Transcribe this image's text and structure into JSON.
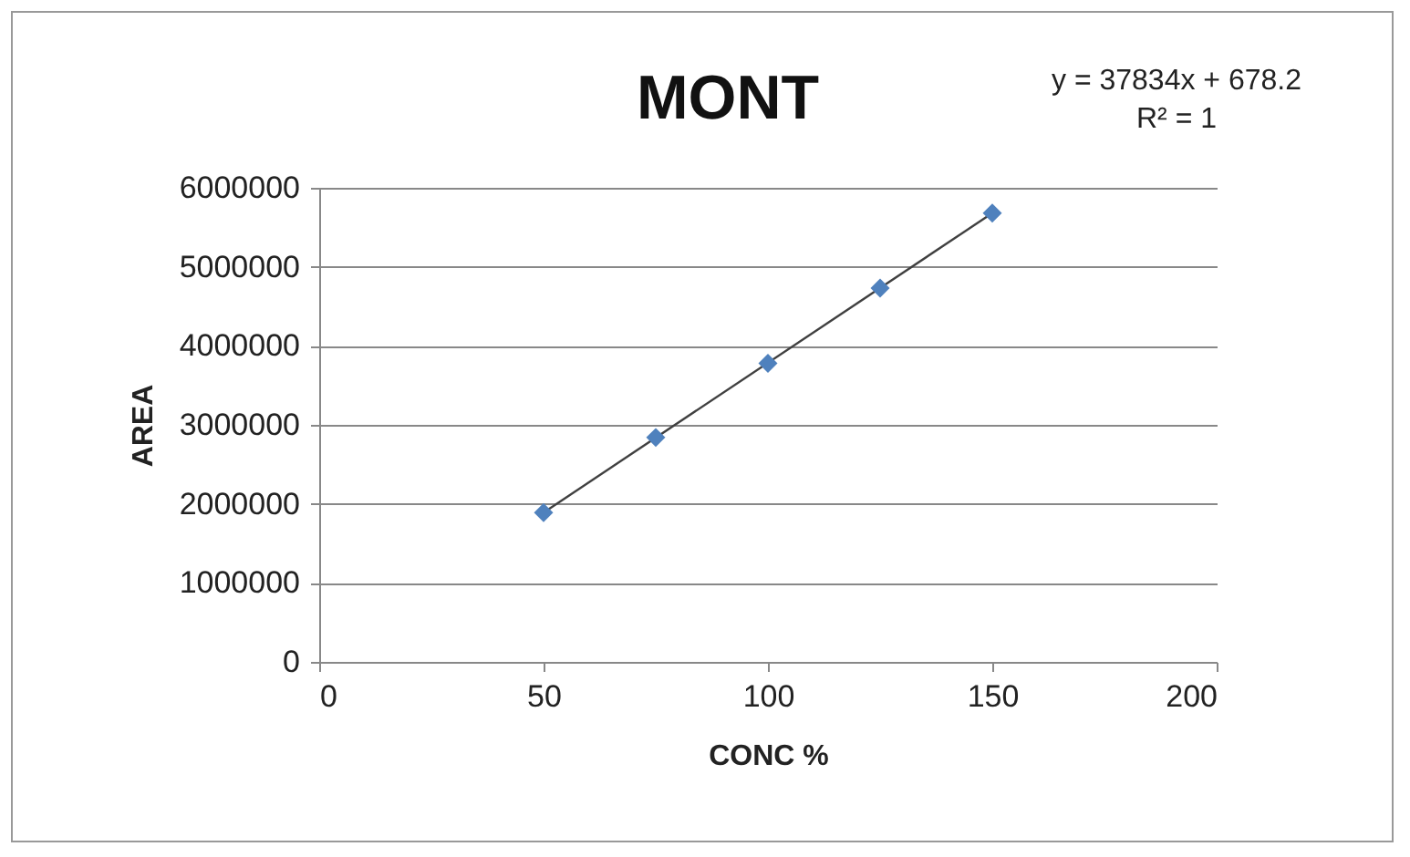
{
  "chart_data": {
    "type": "scatter",
    "title": "MONT",
    "xlabel": "CONC %",
    "ylabel": "AREA",
    "annotations": [
      "y = 37834x + 678.2",
      "R² = 1"
    ],
    "series": [
      {
        "color": "#4f81bd",
        "marker": "diamond",
        "x": [
          50,
          75,
          100,
          125,
          150
        ],
        "values": [
          1890000,
          2840000,
          3780000,
          4730000,
          5680000
        ]
      },
      {
        "type": "line",
        "color": "#404040",
        "marker": "none",
        "x": [
          50,
          150
        ],
        "values": [
          1890000,
          5680000
        ]
      }
    ],
    "xlim": [
      0,
      200
    ],
    "xticks": [
      0,
      50,
      100,
      150,
      200
    ],
    "ylim": [
      0,
      6000000
    ],
    "yticks": [
      0,
      1000000,
      2000000,
      3000000,
      4000000,
      5000000,
      6000000
    ],
    "grid": "y",
    "line_style": "solid"
  }
}
